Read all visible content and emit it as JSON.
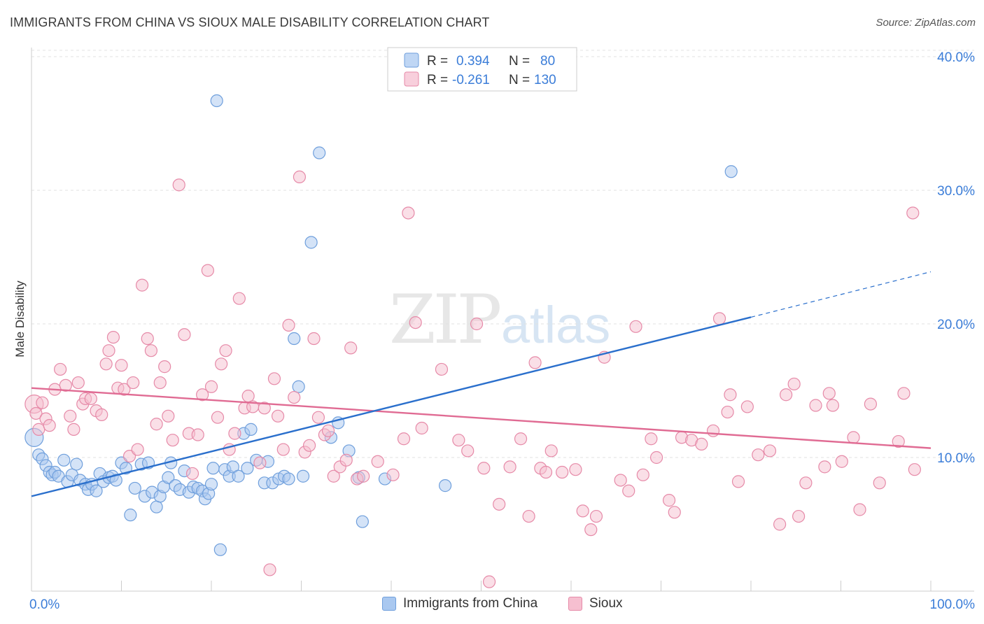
{
  "title": "IMMIGRANTS FROM CHINA VS SIOUX MALE DISABILITY CORRELATION CHART",
  "source": "Source: ZipAtlas.com",
  "watermark": {
    "zip": "ZIP",
    "atlas": "atlas"
  },
  "colors": {
    "china_fill": "#a9c8f0",
    "china_stroke": "#6f9fdc",
    "china_line": "#2a6fcc",
    "sioux_fill": "#f6bfd0",
    "sioux_stroke": "#e68aa8",
    "sioux_line": "#e06b93",
    "tick_text": "#3b7dd8"
  },
  "legend": {
    "china": {
      "r_label": "R =",
      "r_value": "0.394",
      "n_label": "N =",
      "n_value": "80"
    },
    "sioux": {
      "r_label": "R =",
      "r_value": "-0.261",
      "n_label": "N =",
      "n_value": "130"
    }
  },
  "bottom_legend": {
    "china": "Immigrants from China",
    "sioux": "Sioux"
  },
  "chart_data": {
    "type": "scatter",
    "title": "IMMIGRANTS FROM CHINA VS SIOUX MALE DISABILITY CORRELATION CHART",
    "xlabel": "",
    "ylabel": "Male Disability",
    "xlim": [
      0,
      100
    ],
    "ylim": [
      0,
      41
    ],
    "x_tick_labels": [
      "0.0%",
      "100.0%"
    ],
    "y_ticks": [
      10,
      20,
      30,
      40
    ],
    "y_tick_labels": [
      "10.0%",
      "20.0%",
      "30.0%",
      "40.0%"
    ],
    "grid": true,
    "legend_position": "top-center",
    "series": [
      {
        "name": "Immigrants from China",
        "r": 0.394,
        "n": 80,
        "trend": {
          "x0": 0,
          "y0": 7.1,
          "x1": 80,
          "y1": 20.5,
          "dashed_to_x": 100,
          "dashed_to_y": 23.9
        },
        "points": [
          [
            0.3,
            11.5
          ],
          [
            0.8,
            10.2
          ],
          [
            1.2,
            9.9
          ],
          [
            1.6,
            9.4
          ],
          [
            2.0,
            8.9
          ],
          [
            2.3,
            8.7
          ],
          [
            2.6,
            8.9
          ],
          [
            3.0,
            8.6
          ],
          [
            3.6,
            9.8
          ],
          [
            4.0,
            8.2
          ],
          [
            4.5,
            8.7
          ],
          [
            5.0,
            9.5
          ],
          [
            5.4,
            8.3
          ],
          [
            6.0,
            8.0
          ],
          [
            6.3,
            7.6
          ],
          [
            6.7,
            8.0
          ],
          [
            7.2,
            7.5
          ],
          [
            7.6,
            8.8
          ],
          [
            8.0,
            8.2
          ],
          [
            8.6,
            8.5
          ],
          [
            9.0,
            8.6
          ],
          [
            9.4,
            8.3
          ],
          [
            10.0,
            9.6
          ],
          [
            10.5,
            9.2
          ],
          [
            11.0,
            5.7
          ],
          [
            11.5,
            7.7
          ],
          [
            12.2,
            9.5
          ],
          [
            12.6,
            7.1
          ],
          [
            13.0,
            9.6
          ],
          [
            13.4,
            7.4
          ],
          [
            13.9,
            6.3
          ],
          [
            14.3,
            7.1
          ],
          [
            14.7,
            7.8
          ],
          [
            15.2,
            8.5
          ],
          [
            15.5,
            9.6
          ],
          [
            16.0,
            7.9
          ],
          [
            16.5,
            7.6
          ],
          [
            17.0,
            9.0
          ],
          [
            17.5,
            7.4
          ],
          [
            18.0,
            7.8
          ],
          [
            18.5,
            7.7
          ],
          [
            19.0,
            7.5
          ],
          [
            19.3,
            6.9
          ],
          [
            19.7,
            7.3
          ],
          [
            20.0,
            8.0
          ],
          [
            20.2,
            9.2
          ],
          [
            20.6,
            36.7
          ],
          [
            21.0,
            3.1
          ],
          [
            21.5,
            9.1
          ],
          [
            22.0,
            8.6
          ],
          [
            22.4,
            9.3
          ],
          [
            23.0,
            8.6
          ],
          [
            23.6,
            11.8
          ],
          [
            24.0,
            9.2
          ],
          [
            24.4,
            12.1
          ],
          [
            25.0,
            9.8
          ],
          [
            25.9,
            8.1
          ],
          [
            26.3,
            9.7
          ],
          [
            26.8,
            8.1
          ],
          [
            27.5,
            8.4
          ],
          [
            28.1,
            8.6
          ],
          [
            28.6,
            8.4
          ],
          [
            29.2,
            18.9
          ],
          [
            29.7,
            15.3
          ],
          [
            30.2,
            8.6
          ],
          [
            31.1,
            26.1
          ],
          [
            32.0,
            32.8
          ],
          [
            33.3,
            11.5
          ],
          [
            34.1,
            12.6
          ],
          [
            35.3,
            10.5
          ],
          [
            36.4,
            8.5
          ],
          [
            36.8,
            5.2
          ],
          [
            39.3,
            8.4
          ],
          [
            46.0,
            7.9
          ],
          [
            77.8,
            31.4
          ]
        ]
      },
      {
        "name": "Sioux",
        "r": -0.261,
        "n": 130,
        "trend": {
          "x0": 0,
          "y0": 15.2,
          "x1": 100,
          "y1": 10.7
        },
        "points": [
          [
            0.3,
            14.0
          ],
          [
            0.5,
            13.3
          ],
          [
            0.8,
            12.1
          ],
          [
            1.2,
            14.1
          ],
          [
            1.6,
            12.9
          ],
          [
            2.0,
            12.4
          ],
          [
            2.6,
            15.1
          ],
          [
            3.2,
            16.6
          ],
          [
            3.8,
            15.4
          ],
          [
            4.3,
            13.1
          ],
          [
            4.7,
            12.1
          ],
          [
            5.2,
            15.6
          ],
          [
            5.7,
            14.0
          ],
          [
            6.0,
            14.4
          ],
          [
            6.6,
            14.4
          ],
          [
            7.2,
            13.5
          ],
          [
            7.8,
            13.2
          ],
          [
            8.3,
            17.0
          ],
          [
            8.6,
            18.0
          ],
          [
            9.1,
            19.0
          ],
          [
            9.6,
            15.2
          ],
          [
            10.0,
            16.9
          ],
          [
            10.3,
            15.1
          ],
          [
            10.9,
            10.1
          ],
          [
            11.3,
            15.6
          ],
          [
            11.8,
            10.6
          ],
          [
            12.3,
            22.9
          ],
          [
            12.9,
            18.9
          ],
          [
            13.3,
            18.0
          ],
          [
            13.9,
            12.5
          ],
          [
            14.3,
            15.6
          ],
          [
            14.8,
            16.8
          ],
          [
            15.2,
            13.1
          ],
          [
            15.7,
            11.3
          ],
          [
            16.4,
            30.4
          ],
          [
            17.0,
            19.2
          ],
          [
            17.5,
            11.8
          ],
          [
            17.9,
            8.8
          ],
          [
            18.5,
            11.7
          ],
          [
            19.0,
            14.7
          ],
          [
            19.6,
            24.0
          ],
          [
            20.0,
            15.3
          ],
          [
            20.7,
            13.0
          ],
          [
            21.1,
            17.0
          ],
          [
            21.6,
            18.0
          ],
          [
            22.0,
            10.6
          ],
          [
            22.6,
            11.8
          ],
          [
            23.1,
            21.9
          ],
          [
            23.7,
            13.7
          ],
          [
            24.1,
            14.6
          ],
          [
            24.6,
            13.8
          ],
          [
            25.4,
            9.6
          ],
          [
            25.9,
            13.7
          ],
          [
            26.5,
            1.6
          ],
          [
            27.0,
            15.9
          ],
          [
            27.4,
            13.1
          ],
          [
            28.0,
            10.6
          ],
          [
            28.6,
            19.9
          ],
          [
            29.2,
            14.5
          ],
          [
            29.8,
            31.0
          ],
          [
            30.4,
            10.4
          ],
          [
            30.9,
            10.9
          ],
          [
            31.4,
            18.9
          ],
          [
            31.9,
            13.0
          ],
          [
            32.6,
            11.7
          ],
          [
            33.0,
            12.0
          ],
          [
            33.6,
            8.6
          ],
          [
            34.3,
            9.3
          ],
          [
            35.0,
            9.8
          ],
          [
            35.5,
            18.2
          ],
          [
            36.2,
            8.4
          ],
          [
            36.9,
            8.6
          ],
          [
            38.5,
            9.7
          ],
          [
            40.2,
            8.7
          ],
          [
            41.4,
            11.4
          ],
          [
            41.9,
            28.3
          ],
          [
            42.7,
            20.1
          ],
          [
            43.4,
            12.2
          ],
          [
            45.6,
            16.6
          ],
          [
            47.5,
            11.3
          ],
          [
            48.5,
            10.5
          ],
          [
            49.5,
            20.0
          ],
          [
            50.3,
            9.2
          ],
          [
            50.9,
            0.7
          ],
          [
            52.0,
            6.5
          ],
          [
            53.2,
            9.3
          ],
          [
            54.4,
            11.4
          ],
          [
            55.3,
            5.6
          ],
          [
            56.0,
            17.1
          ],
          [
            56.6,
            9.2
          ],
          [
            57.2,
            8.9
          ],
          [
            57.8,
            10.5
          ],
          [
            59.0,
            8.9
          ],
          [
            60.5,
            9.1
          ],
          [
            61.3,
            6.0
          ],
          [
            62.2,
            4.6
          ],
          [
            62.8,
            5.6
          ],
          [
            63.7,
            17.5
          ],
          [
            65.5,
            8.3
          ],
          [
            66.4,
            7.5
          ],
          [
            67.2,
            19.8
          ],
          [
            68.0,
            8.7
          ],
          [
            68.9,
            11.4
          ],
          [
            69.5,
            10.0
          ],
          [
            70.9,
            6.8
          ],
          [
            71.5,
            5.9
          ],
          [
            72.3,
            11.5
          ],
          [
            73.4,
            11.3
          ],
          [
            74.5,
            11.0
          ],
          [
            75.8,
            12.0
          ],
          [
            76.5,
            20.4
          ],
          [
            77.4,
            13.4
          ],
          [
            77.7,
            14.7
          ],
          [
            78.6,
            8.2
          ],
          [
            79.6,
            13.8
          ],
          [
            80.8,
            10.2
          ],
          [
            82.1,
            10.5
          ],
          [
            83.2,
            5.0
          ],
          [
            83.9,
            14.7
          ],
          [
            84.8,
            15.5
          ],
          [
            85.3,
            5.6
          ],
          [
            86.1,
            8.1
          ],
          [
            87.2,
            13.9
          ],
          [
            88.2,
            9.3
          ],
          [
            88.7,
            14.8
          ],
          [
            89.1,
            13.9
          ],
          [
            90.1,
            9.7
          ],
          [
            91.4,
            11.5
          ],
          [
            92.1,
            6.1
          ],
          [
            93.3,
            14.0
          ],
          [
            94.3,
            8.1
          ],
          [
            96.4,
            11.2
          ],
          [
            97.0,
            14.8
          ],
          [
            98.0,
            28.3
          ],
          [
            98.2,
            9.1
          ]
        ]
      }
    ]
  }
}
